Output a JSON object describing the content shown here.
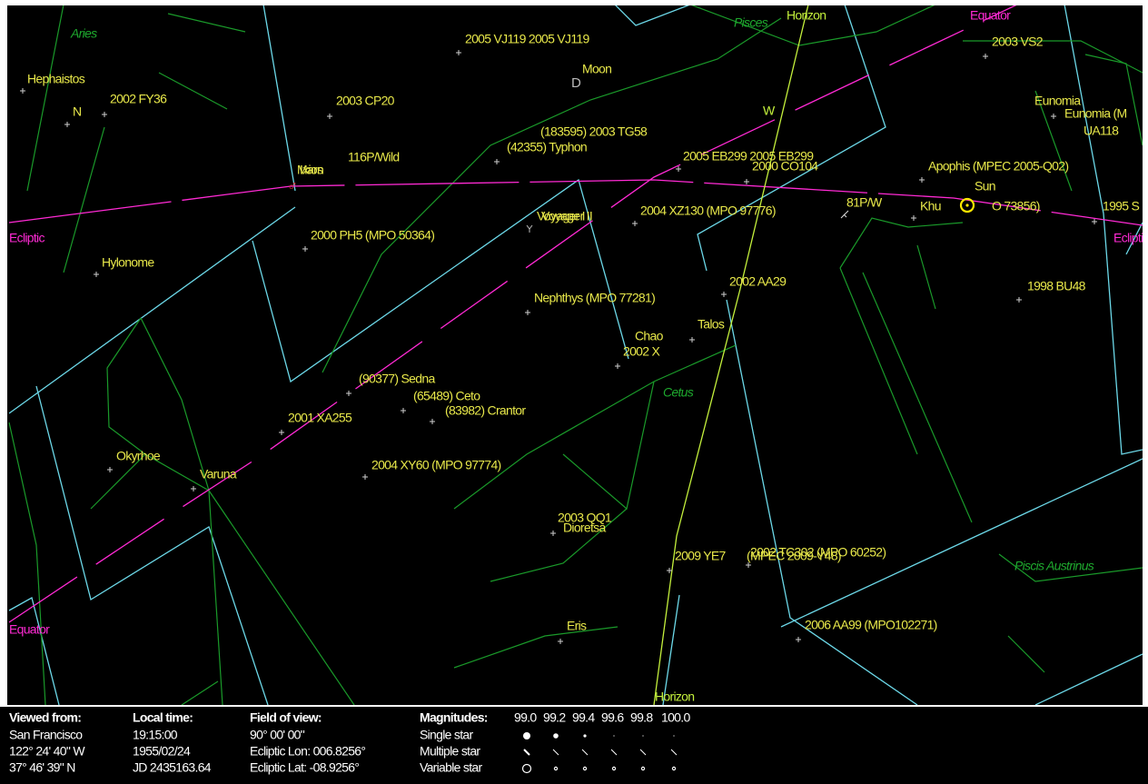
{
  "constellations": [
    "Aries",
    "Pisces",
    "Cetus",
    "Piscis Austrinus"
  ],
  "reference_labels": [
    "Ecliptic",
    "Ecliptic",
    "Equator",
    "Equator",
    "Horizon",
    "Horizon",
    "W"
  ],
  "objects": [
    "Hephaistos",
    "N",
    "2002 FY36",
    "Hylonome",
    "2003 CP20",
    "116P/Wild",
    "Mars",
    "Ixion",
    "2000 PH5 (MPO 50364)",
    "2005 VJ119 2005 VJ119",
    "Moon",
    "(183595) 2003 TG58",
    "(42355) Typhon",
    "2005 EB299 2005 EB299",
    "2000 CO104",
    "Voyager I",
    "Voyager II",
    "2004 XZ130 (MPO 97776)",
    "Nephthys (MPO 77281)",
    "2002 AA29",
    "Chao",
    "2002 X",
    "Talos",
    "(90377) Sedna",
    "(65489) Ceto",
    "(83982) Crantor",
    "2001 XA255",
    "Okyrhoe",
    "Varuna",
    "2004 XY60 (MPO 97774)",
    "2003 QQ1",
    "Dioretsa",
    "2009 YE7",
    "(MPEC 2009-Y48)",
    "2002 TC302 (MPO 60252)",
    "Eris",
    "2006 AA99 (MPO102271)",
    "2003 VS2",
    "Eunomia",
    "Eunomia (M",
    "UA118",
    "Apophis (MPEC 2005-Q02)",
    "Sun",
    "81P/W",
    "Khu",
    "O 73856)",
    "1995 S",
    "1998 BU48"
  ],
  "info_panel": {
    "headers": [
      "Viewed from:",
      "Local time:",
      "Field of view:",
      "Magnitudes:"
    ],
    "magnitudes": [
      "99.0",
      "99.2",
      "99.4",
      "99.6",
      "99.8",
      "100.0"
    ],
    "rows": [
      [
        "San Francisco",
        "19:15:00",
        "90° 00' 00\"",
        "Single star"
      ],
      [
        "122° 24' 40\" W",
        "1955/02/24",
        "Ecliptic Lon: 006.8256°",
        "Multiple star"
      ],
      [
        "37° 46' 39\" N",
        "JD 2435163.64",
        "Ecliptic Lat: -08.9256°",
        "Variable star"
      ]
    ]
  }
}
